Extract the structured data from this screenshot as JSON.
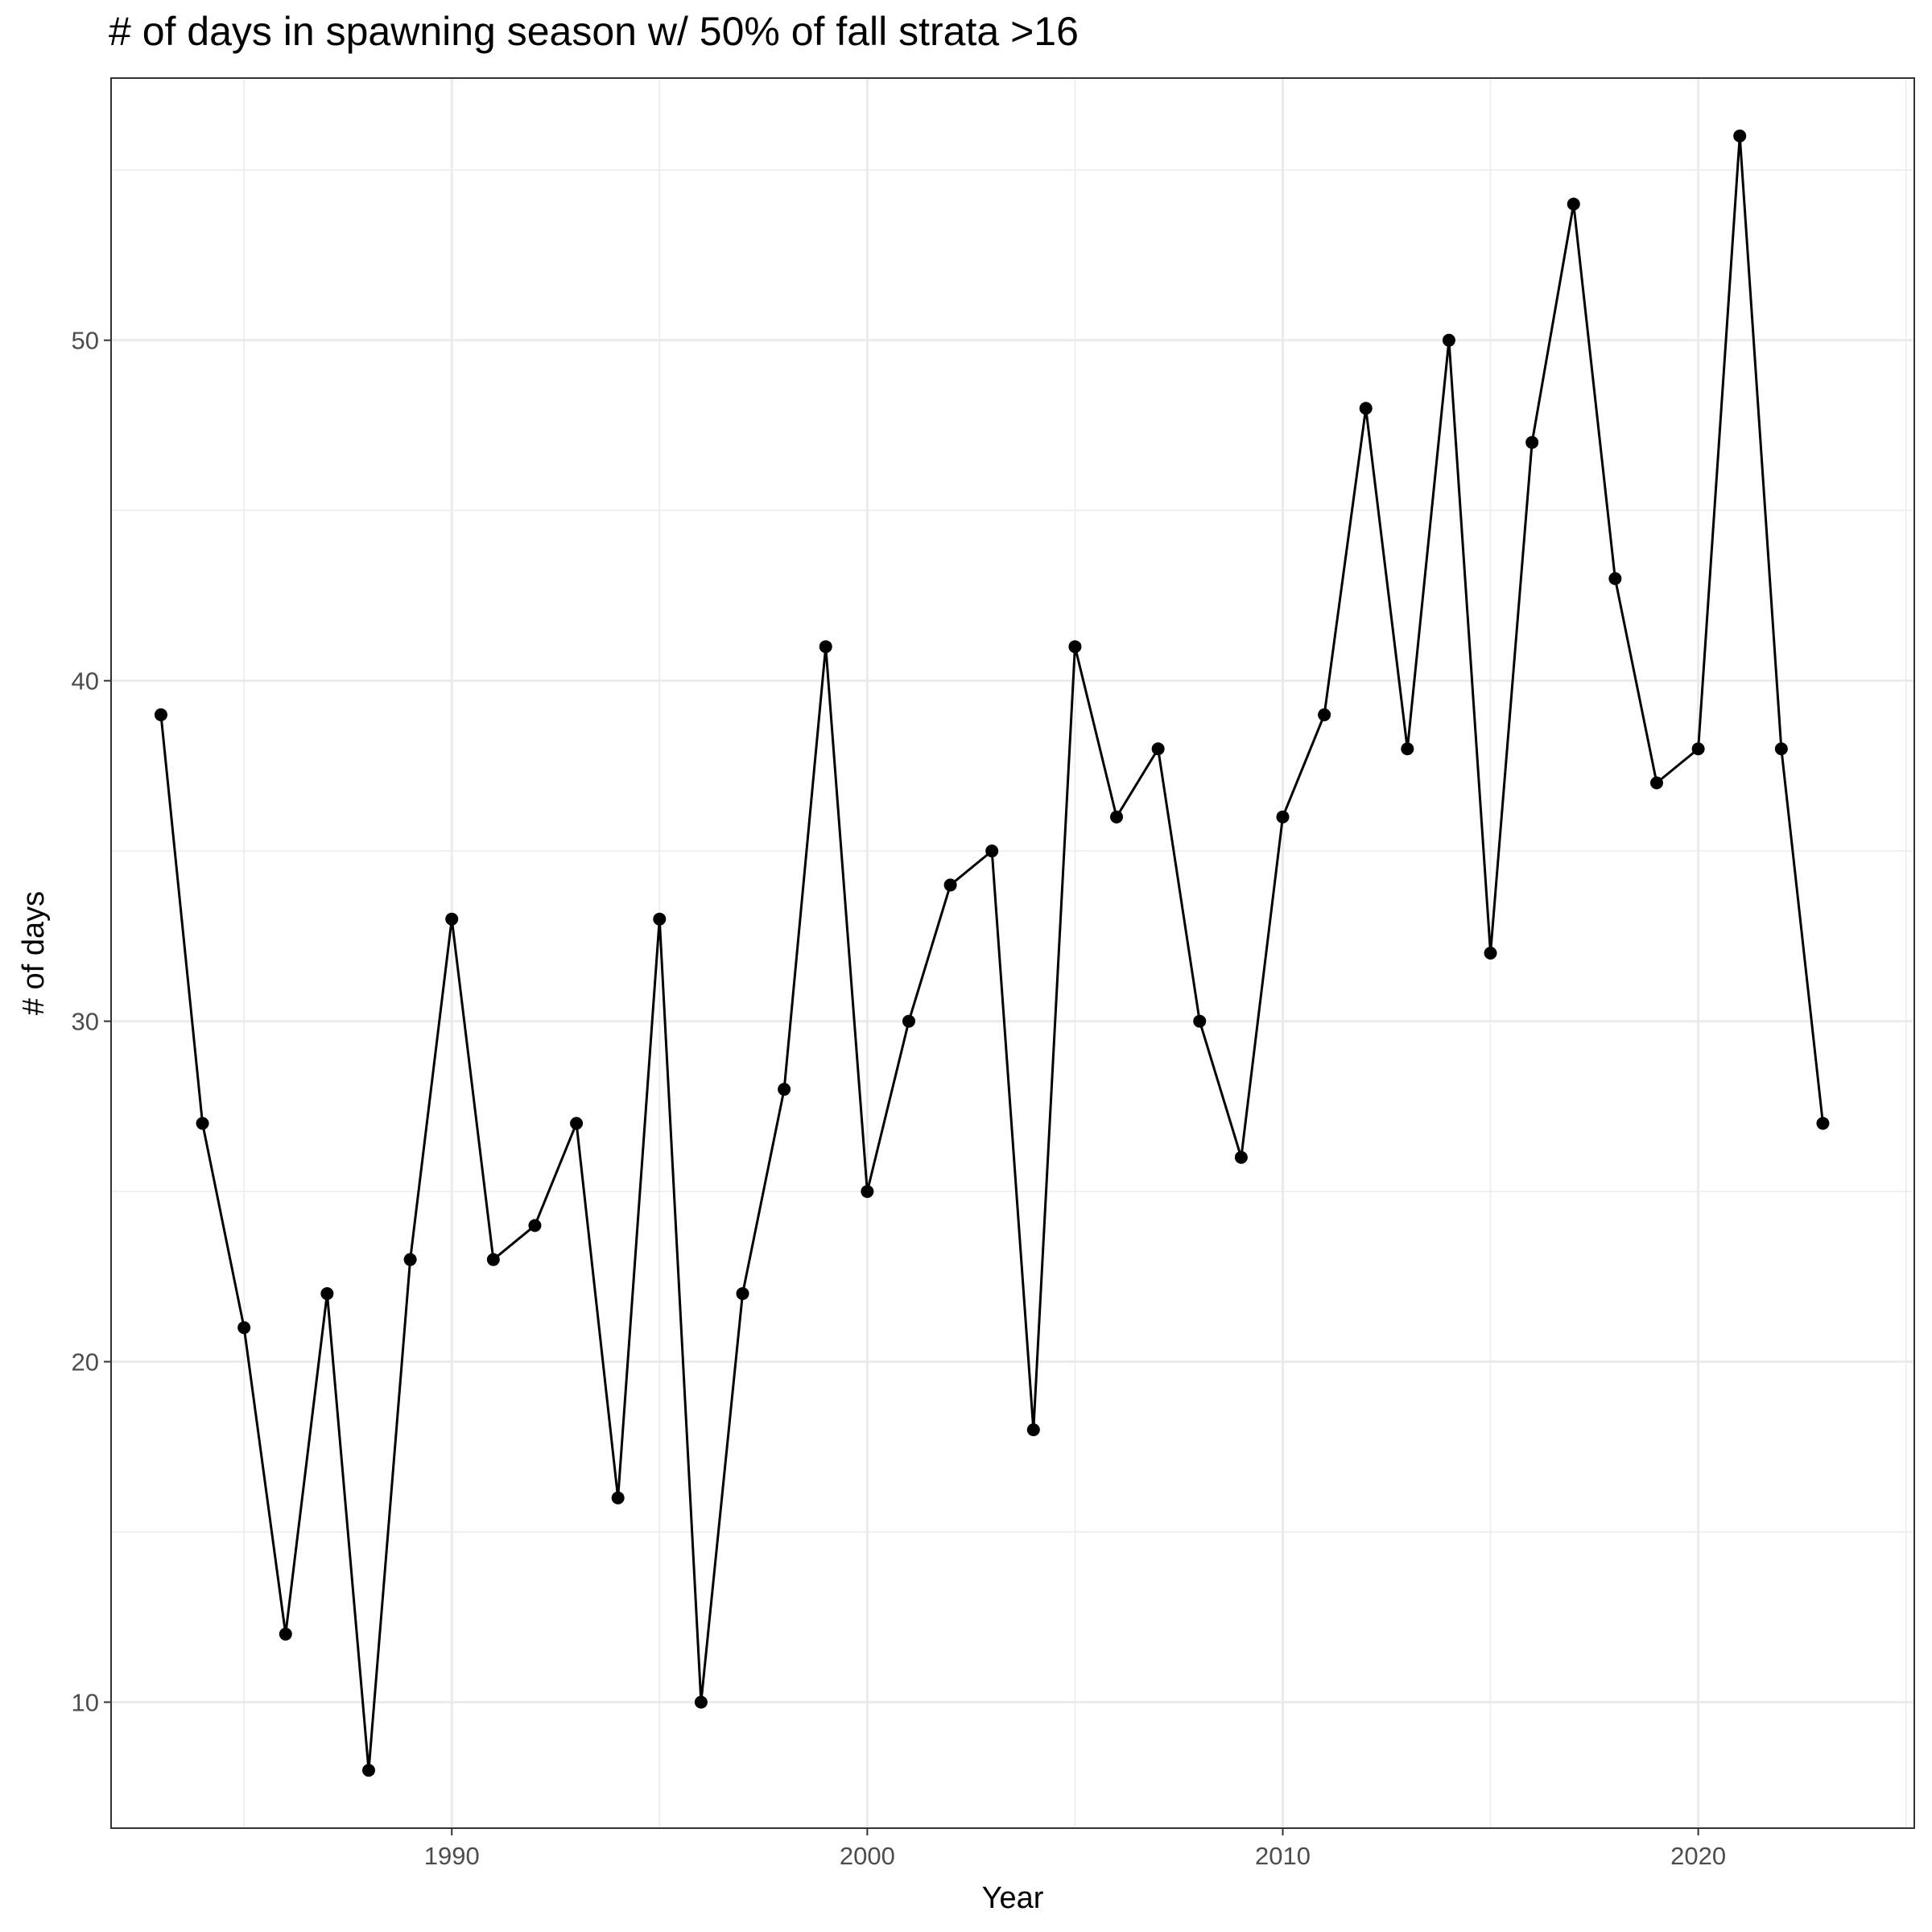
{
  "chart_data": {
    "type": "line",
    "title": "# of days in spawning season w/ 50% of fall strata >16",
    "xlabel": "Year",
    "ylabel": "# of days",
    "xlim": [
      1981.8,
      2025.2
    ],
    "ylim": [
      6.3,
      57.7
    ],
    "x_ticks": [
      1990,
      2000,
      2010,
      2020
    ],
    "y_ticks": [
      10,
      20,
      30,
      40,
      50
    ],
    "grid": true,
    "markers": true,
    "series": [
      {
        "color": "#000000",
        "x": [
          1983,
          1984,
          1985,
          1986,
          1987,
          1988,
          1989,
          1990,
          1991,
          1992,
          1993,
          1994,
          1995,
          1996,
          1997,
          1998,
          1999,
          2000,
          2001,
          2002,
          2003,
          2004,
          2005,
          2006,
          2007,
          2008,
          2009,
          2010,
          2011,
          2012,
          2013,
          2014,
          2015,
          2016,
          2017,
          2018,
          2019,
          2020,
          2021,
          2022,
          2023
        ],
        "y": [
          39,
          27,
          21,
          12,
          22,
          8,
          23,
          33,
          23,
          24,
          27,
          16,
          33,
          10,
          22,
          28,
          41,
          25,
          30,
          34,
          35,
          18,
          41,
          36,
          38,
          30,
          26,
          36,
          39,
          48,
          38,
          50,
          32,
          47,
          54,
          43,
          37,
          38,
          56,
          38,
          27
        ]
      }
    ]
  }
}
